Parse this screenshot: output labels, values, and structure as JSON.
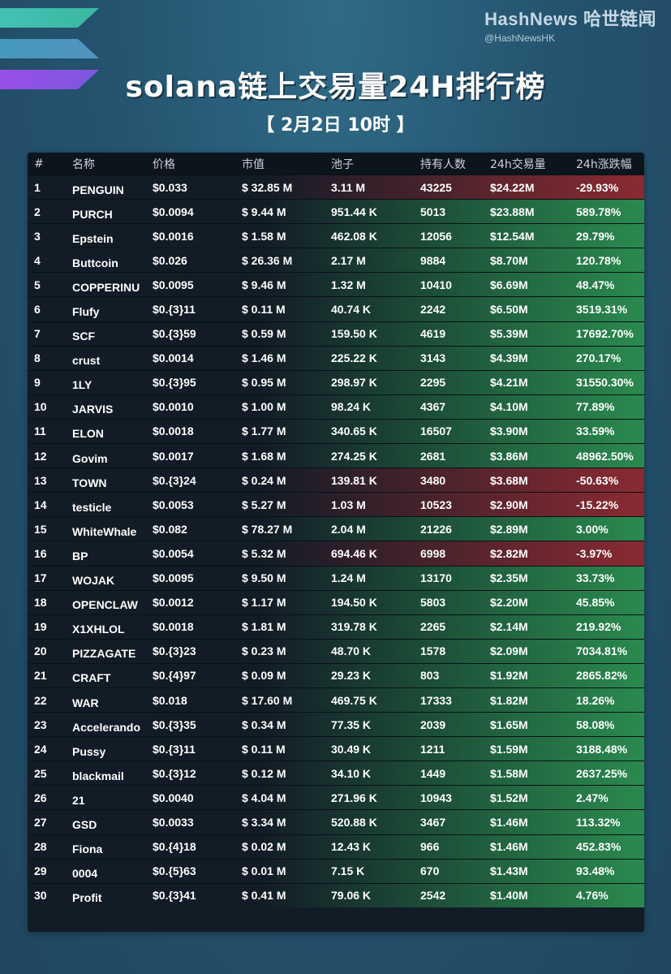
{
  "brand": {
    "name": "HashNews 哈世链闻",
    "handle": "@HashNewsHK"
  },
  "colors": {
    "up": "#2a8a4e",
    "down": "#8a2a32"
  },
  "chart_data": {
    "type": "table",
    "title": "solana链上交易量24H排行榜",
    "subtitle": "【 2月2日  10时 】",
    "columns": [
      "#",
      "名称",
      "价格",
      "市值",
      "池子",
      "持有人数",
      "24h交易量",
      "24h涨跌幅"
    ],
    "rows": [
      {
        "rank": "1",
        "name": "PENGUIN",
        "price": "$0.033",
        "mcap": "$ 32.85 M",
        "pool": "3.11 M",
        "holders": "43225",
        "volume": "$24.22M",
        "change": "-29.93%",
        "change_value": -29.93
      },
      {
        "rank": "2",
        "name": "PURCH",
        "price": "$0.0094",
        "mcap": "$ 9.44 M",
        "pool": "951.44 K",
        "holders": "5013",
        "volume": "$23.88M",
        "change": "589.78%",
        "change_value": 589.78
      },
      {
        "rank": "3",
        "name": "Epstein",
        "price": "$0.0016",
        "mcap": "$ 1.58 M",
        "pool": "462.08 K",
        "holders": "12056",
        "volume": "$12.54M",
        "change": "29.79%",
        "change_value": 29.79
      },
      {
        "rank": "4",
        "name": "Buttcoin",
        "price": "$0.026",
        "mcap": "$ 26.36 M",
        "pool": "2.17 M",
        "holders": "9884",
        "volume": "$8.70M",
        "change": "120.78%",
        "change_value": 120.78
      },
      {
        "rank": "5",
        "name": "COPPERINU",
        "price": "$0.0095",
        "mcap": "$ 9.46 M",
        "pool": "1.32 M",
        "holders": "10410",
        "volume": "$6.69M",
        "change": "48.47%",
        "change_value": 48.47
      },
      {
        "rank": "6",
        "name": "Flufy",
        "price": "$0.{3}11",
        "mcap": "$ 0.11 M",
        "pool": "40.74 K",
        "holders": "2242",
        "volume": "$6.50M",
        "change": "3519.31%",
        "change_value": 3519.31
      },
      {
        "rank": "7",
        "name": "SCF",
        "price": "$0.{3}59",
        "mcap": "$ 0.59 M",
        "pool": "159.50 K",
        "holders": "4619",
        "volume": "$5.39M",
        "change": "17692.70%",
        "change_value": 17692.7
      },
      {
        "rank": "8",
        "name": "crust",
        "price": "$0.0014",
        "mcap": "$ 1.46 M",
        "pool": "225.22 K",
        "holders": "3143",
        "volume": "$4.39M",
        "change": "270.17%",
        "change_value": 270.17
      },
      {
        "rank": "9",
        "name": "1LY",
        "price": "$0.{3}95",
        "mcap": "$ 0.95 M",
        "pool": "298.97 K",
        "holders": "2295",
        "volume": "$4.21M",
        "change": "31550.30%",
        "change_value": 31550.3
      },
      {
        "rank": "10",
        "name": "JARVIS",
        "price": "$0.0010",
        "mcap": "$ 1.00 M",
        "pool": "98.24 K",
        "holders": "4367",
        "volume": "$4.10M",
        "change": "77.89%",
        "change_value": 77.89
      },
      {
        "rank": "11",
        "name": "ELON",
        "price": "$0.0018",
        "mcap": "$ 1.77 M",
        "pool": "340.65 K",
        "holders": "16507",
        "volume": "$3.90M",
        "change": "33.59%",
        "change_value": 33.59
      },
      {
        "rank": "12",
        "name": "Govim",
        "price": "$0.0017",
        "mcap": "$ 1.68 M",
        "pool": "274.25 K",
        "holders": "2681",
        "volume": "$3.86M",
        "change": "48962.50%",
        "change_value": 48962.5
      },
      {
        "rank": "13",
        "name": "TOWN",
        "price": "$0.{3}24",
        "mcap": "$ 0.24 M",
        "pool": "139.81 K",
        "holders": "3480",
        "volume": "$3.68M",
        "change": "-50.63%",
        "change_value": -50.63
      },
      {
        "rank": "14",
        "name": "testicle",
        "price": "$0.0053",
        "mcap": "$ 5.27 M",
        "pool": "1.03 M",
        "holders": "10523",
        "volume": "$2.90M",
        "change": "-15.22%",
        "change_value": -15.22
      },
      {
        "rank": "15",
        "name": "WhiteWhale",
        "price": "$0.082",
        "mcap": "$ 78.27 M",
        "pool": "2.04 M",
        "holders": "21226",
        "volume": "$2.89M",
        "change": "3.00%",
        "change_value": 3.0
      },
      {
        "rank": "16",
        "name": "BP",
        "price": "$0.0054",
        "mcap": "$ 5.32 M",
        "pool": "694.46 K",
        "holders": "6998",
        "volume": "$2.82M",
        "change": "-3.97%",
        "change_value": -3.97
      },
      {
        "rank": "17",
        "name": "WOJAK",
        "price": "$0.0095",
        "mcap": "$ 9.50 M",
        "pool": "1.24 M",
        "holders": "13170",
        "volume": "$2.35M",
        "change": "33.73%",
        "change_value": 33.73
      },
      {
        "rank": "18",
        "name": "OPENCLAW",
        "price": "$0.0012",
        "mcap": "$ 1.17 M",
        "pool": "194.50 K",
        "holders": "5803",
        "volume": "$2.20M",
        "change": "45.85%",
        "change_value": 45.85
      },
      {
        "rank": "19",
        "name": "X1XHLOL",
        "price": "$0.0018",
        "mcap": "$ 1.81 M",
        "pool": "319.78 K",
        "holders": "2265",
        "volume": "$2.14M",
        "change": "219.92%",
        "change_value": 219.92
      },
      {
        "rank": "20",
        "name": "PIZZAGATE",
        "price": "$0.{3}23",
        "mcap": "$ 0.23 M",
        "pool": "48.70 K",
        "holders": "1578",
        "volume": "$2.09M",
        "change": "7034.81%",
        "change_value": 7034.81
      },
      {
        "rank": "21",
        "name": "CRAFT",
        "price": "$0.{4}97",
        "mcap": "$ 0.09 M",
        "pool": "29.23 K",
        "holders": "803",
        "volume": "$1.92M",
        "change": "2865.82%",
        "change_value": 2865.82
      },
      {
        "rank": "22",
        "name": "WAR",
        "price": "$0.018",
        "mcap": "$ 17.60 M",
        "pool": "469.75 K",
        "holders": "17333",
        "volume": "$1.82M",
        "change": "18.26%",
        "change_value": 18.26
      },
      {
        "rank": "23",
        "name": "Accelerando",
        "price": "$0.{3}35",
        "mcap": "$ 0.34 M",
        "pool": "77.35 K",
        "holders": "2039",
        "volume": "$1.65M",
        "change": "58.08%",
        "change_value": 58.08
      },
      {
        "rank": "24",
        "name": "Pussy",
        "price": "$0.{3}11",
        "mcap": "$ 0.11 M",
        "pool": "30.49 K",
        "holders": "1211",
        "volume": "$1.59M",
        "change": "3188.48%",
        "change_value": 3188.48
      },
      {
        "rank": "25",
        "name": "blackmail",
        "price": "$0.{3}12",
        "mcap": "$ 0.12 M",
        "pool": "34.10 K",
        "holders": "1449",
        "volume": "$1.58M",
        "change": "2637.25%",
        "change_value": 2637.25
      },
      {
        "rank": "26",
        "name": "21",
        "price": "$0.0040",
        "mcap": "$ 4.04 M",
        "pool": "271.96 K",
        "holders": "10943",
        "volume": "$1.52M",
        "change": "2.47%",
        "change_value": 2.47
      },
      {
        "rank": "27",
        "name": "GSD",
        "price": "$0.0033",
        "mcap": "$ 3.34 M",
        "pool": "520.88 K",
        "holders": "3467",
        "volume": "$1.46M",
        "change": "113.32%",
        "change_value": 113.32
      },
      {
        "rank": "28",
        "name": "Fiona",
        "price": "$0.{4}18",
        "mcap": "$ 0.02 M",
        "pool": "12.43 K",
        "holders": "966",
        "volume": "$1.46M",
        "change": "452.83%",
        "change_value": 452.83
      },
      {
        "rank": "29",
        "name": "0004",
        "price": "$0.{5}63",
        "mcap": "$ 0.01 M",
        "pool": "7.15 K",
        "holders": "670",
        "volume": "$1.43M",
        "change": "93.48%",
        "change_value": 93.48
      },
      {
        "rank": "30",
        "name": "Profit",
        "price": "$0.{3}41",
        "mcap": "$ 0.41 M",
        "pool": "79.06 K",
        "holders": "2542",
        "volume": "$1.40M",
        "change": "4.76%",
        "change_value": 4.76
      }
    ]
  }
}
